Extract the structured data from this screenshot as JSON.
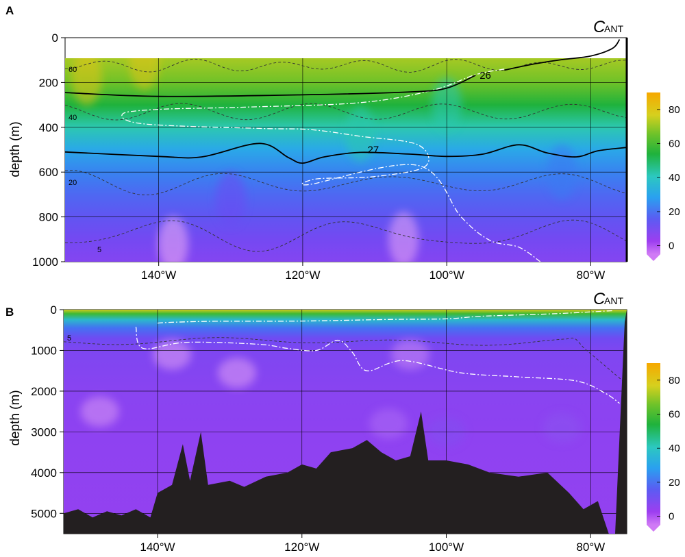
{
  "chart_data": [
    {
      "type": "heatmap",
      "panel": "A",
      "title_main": "C",
      "title_sub": "ANT",
      "ylabel": "depth (m)",
      "xlim": [
        -153,
        -75
      ],
      "ylim": [
        1000,
        0
      ],
      "x_ticks": [
        -140,
        -120,
        -100,
        -80
      ],
      "x_tick_labels": [
        "140°W",
        "120°W",
        "100°W",
        "80°W"
      ],
      "y_ticks": [
        0,
        200,
        400,
        600,
        800,
        1000
      ],
      "y_tick_labels": [
        "0",
        "200",
        "400",
        "600",
        "800",
        "1000"
      ],
      "grid": true,
      "colorbar": {
        "ticks": [
          0,
          20,
          40,
          60,
          80
        ],
        "tick_labels": [
          "0",
          "20",
          "40",
          "60",
          "80"
        ],
        "range": [
          -5,
          90
        ]
      },
      "field_stops_depth_value": [
        [
          90,
          68
        ],
        [
          200,
          62
        ],
        [
          300,
          50
        ],
        [
          400,
          40
        ],
        [
          500,
          30
        ],
        [
          600,
          22
        ],
        [
          700,
          16
        ],
        [
          800,
          12
        ],
        [
          900,
          8
        ],
        [
          1000,
          5
        ]
      ],
      "dashed_contour_labels": [
        "60",
        "40",
        "20",
        "5"
      ],
      "isopycnals": [
        {
          "label": "26",
          "points": [
            [
              -153,
              245
            ],
            [
              -140,
              262
            ],
            [
              -120,
              255
            ],
            [
              -105,
              242
            ],
            [
              -100,
              225
            ],
            [
              -96,
              168
            ]
          ]
        },
        {
          "label": "",
          "points": [
            [
              -92,
              145
            ],
            [
              -88,
              118
            ],
            [
              -84,
              98
            ],
            [
              -80,
              82
            ],
            [
              -77,
              48
            ],
            [
              -76,
              8
            ]
          ]
        },
        {
          "label": "27",
          "points": [
            [
              -153,
              510
            ],
            [
              -140,
              530
            ],
            [
              -134,
              532
            ],
            [
              -126,
              472
            ],
            [
              -122,
              535
            ],
            [
              -120,
              560
            ],
            [
              -117,
              532
            ],
            [
              -112,
              512
            ],
            [
              -105,
              520
            ],
            [
              -100,
              530
            ],
            [
              -95,
              520
            ],
            [
              -90,
              478
            ],
            [
              -86,
              515
            ],
            [
              -82,
              532
            ],
            [
              -79,
              505
            ],
            [
              -75,
              490
            ]
          ]
        }
      ],
      "white_contour_points": [
        [
          -92,
          140
        ],
        [
          -96,
          165
        ],
        [
          -102,
          235
        ],
        [
          -112,
          290
        ],
        [
          -128,
          310
        ],
        [
          -140,
          320
        ],
        [
          -145,
          340
        ],
        [
          -142,
          385
        ],
        [
          -126,
          405
        ],
        [
          -119,
          410
        ],
        [
          -112,
          440
        ],
        [
          -104,
          478
        ],
        [
          -103,
          575
        ],
        [
          -110,
          620
        ],
        [
          -118,
          630
        ],
        [
          -119,
          655
        ],
        [
          -104,
          570
        ],
        [
          -98,
          800
        ],
        [
          -94,
          905
        ],
        [
          -90,
          935
        ],
        [
          -87,
          1000
        ]
      ],
      "white_contour_labels": []
    },
    {
      "type": "heatmap",
      "panel": "B",
      "title_main": "C",
      "title_sub": "ANT",
      "ylabel": "depth (m)",
      "xlim": [
        -153,
        -75
      ],
      "ylim": [
        5500,
        0
      ],
      "x_ticks": [
        -140,
        -120,
        -100,
        -80
      ],
      "x_tick_labels": [
        "140°W",
        "120°W",
        "100°W",
        "80°W"
      ],
      "y_ticks": [
        0,
        1000,
        2000,
        3000,
        4000,
        5000
      ],
      "y_tick_labels": [
        "0",
        "1000",
        "2000",
        "3000",
        "4000",
        "5000"
      ],
      "grid": true,
      "colorbar": {
        "ticks": [
          0,
          20,
          40,
          60,
          80
        ],
        "tick_labels": [
          "0",
          "20",
          "40",
          "60",
          "80"
        ],
        "range": [
          -5,
          90
        ]
      },
      "field_stops_depth_value": [
        [
          0,
          75
        ],
        [
          100,
          55
        ],
        [
          250,
          35
        ],
        [
          450,
          18
        ],
        [
          700,
          9
        ],
        [
          1000,
          6
        ],
        [
          2000,
          4
        ],
        [
          3000,
          3
        ],
        [
          5500,
          2
        ]
      ],
      "dashed_contour_labels": [
        "5"
      ],
      "seafloor_depth_points": [
        [
          -153,
          5000
        ],
        [
          -151,
          4900
        ],
        [
          -149,
          5100
        ],
        [
          -147,
          4950
        ],
        [
          -145,
          5050
        ],
        [
          -143,
          4900
        ],
        [
          -141,
          5100
        ],
        [
          -140,
          4500
        ],
        [
          -138,
          4300
        ],
        [
          -136.5,
          3300
        ],
        [
          -135.5,
          4200
        ],
        [
          -134,
          3000
        ],
        [
          -133,
          4300
        ],
        [
          -130,
          4200
        ],
        [
          -128,
          4350
        ],
        [
          -125,
          4100
        ],
        [
          -122,
          4000
        ],
        [
          -120,
          3800
        ],
        [
          -118,
          3900
        ],
        [
          -116,
          3500
        ],
        [
          -113,
          3400
        ],
        [
          -111,
          3200
        ],
        [
          -109,
          3500
        ],
        [
          -107,
          3700
        ],
        [
          -105,
          3600
        ],
        [
          -103.5,
          2500
        ],
        [
          -102.5,
          3700
        ],
        [
          -100,
          3700
        ],
        [
          -97,
          3800
        ],
        [
          -94,
          4000
        ],
        [
          -90,
          4100
        ],
        [
          -86,
          4000
        ],
        [
          -83,
          4500
        ],
        [
          -81,
          4900
        ],
        [
          -79,
          4700
        ],
        [
          -77.5,
          5500
        ]
      ],
      "white_contour_points": [
        [
          -140,
          330
        ],
        [
          -138,
          310
        ],
        [
          -132,
          285
        ],
        [
          -120,
          280
        ],
        [
          -108,
          240
        ],
        [
          -100,
          225
        ],
        [
          -95,
          160
        ],
        [
          -85,
          100
        ],
        [
          -77,
          25
        ]
      ],
      "white_contour_points_deep": [
        [
          -143,
          420
        ],
        [
          -142,
          950
        ],
        [
          -136,
          800
        ],
        [
          -126,
          850
        ],
        [
          -122,
          950
        ],
        [
          -118,
          1000
        ],
        [
          -115,
          750
        ],
        [
          -113,
          1050
        ],
        [
          -111,
          1500
        ],
        [
          -106,
          1250
        ],
        [
          -98,
          1550
        ],
        [
          -90,
          1650
        ],
        [
          -82,
          1750
        ],
        [
          -78,
          2050
        ],
        [
          -76,
          2300
        ]
      ]
    }
  ]
}
